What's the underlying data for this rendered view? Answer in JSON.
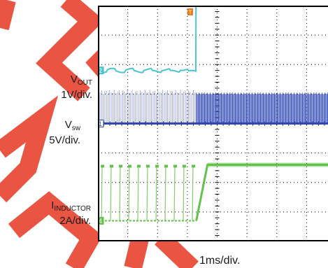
{
  "chart_data": {
    "type": "line",
    "title": "",
    "xlabel": "1ms/div.",
    "ylabel": "",
    "grid": true,
    "x_divisions": 8,
    "y_divisions": 8,
    "trigger_marker": "T",
    "channels": [
      {
        "id": "ch2",
        "marker": "2",
        "name_main": "V",
        "name_sub": "OUT",
        "scale": "1V/div.",
        "color": "#4cc3d4",
        "description_values": {
          "before_step_div": 1.8,
          "after_step_div": 7.6,
          "step_time_div": 3.3
        }
      },
      {
        "id": "ch1",
        "marker": "1",
        "name_main": "V",
        "name_sub": "sw",
        "scale": "5V/div.",
        "color": "#2f47b3",
        "description_values": {
          "baseline_div": 0.0,
          "high_div": 1.0,
          "step_time_div": 3.3
        }
      },
      {
        "id": "ch4",
        "marker": "4",
        "name_main": "I",
        "name_sub": "INDUCTOR",
        "scale": "2A/div.",
        "color": "#62c24a",
        "description_values": {
          "low_div": -3.3,
          "high_div": -1.4,
          "step_time_div": 3.3
        }
      }
    ]
  },
  "colors": {
    "watermark": "#e8432f",
    "grid": "#000000",
    "frame": "#000000"
  }
}
